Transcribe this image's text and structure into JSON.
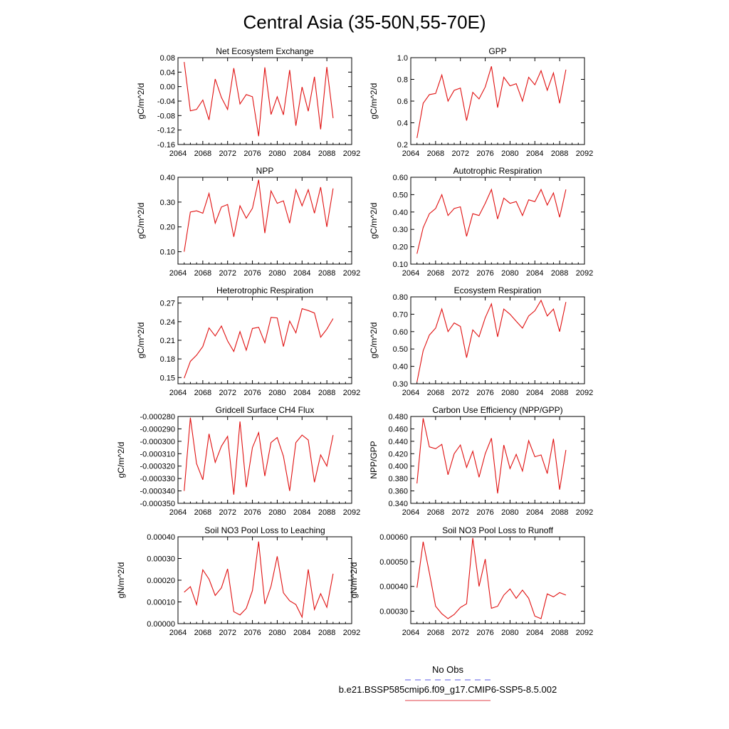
{
  "figure": {
    "title": "Central Asia (35-50N,55-70E)",
    "legend": {
      "position": "bottom-center",
      "entries": [
        {
          "label": "No Obs",
          "color": "#5a5ae6",
          "dash": "dashed"
        },
        {
          "label": "b.e21.BSSP585cmip6.f09_g17.CMIP6-SSP5-8.5.002",
          "color": "#e0404a",
          "dash": "solid"
        }
      ]
    },
    "line_color": "#e01010"
  },
  "chart_data": [
    {
      "type": "line",
      "title": "Net Ecosystem Exchange",
      "ylabel": "gC/m^2/d",
      "xlim": [
        2064,
        2092
      ],
      "xticks": [
        "2064",
        "2068",
        "2072",
        "2076",
        "2080",
        "2084",
        "2088",
        "2092"
      ],
      "ylim": [
        -0.16,
        0.08
      ],
      "yticks": [
        "0.08",
        "0.04",
        "0.00",
        "-0.04",
        "-0.08",
        "-0.12",
        "-0.16"
      ],
      "x": [
        2065,
        2066,
        2067,
        2068,
        2069,
        2070,
        2071,
        2072,
        2073,
        2074,
        2075,
        2076,
        2077,
        2078,
        2079,
        2080,
        2081,
        2082,
        2083,
        2084,
        2085,
        2086,
        2087,
        2088,
        2089
      ],
      "values": [
        0.068,
        -0.067,
        -0.063,
        -0.037,
        -0.092,
        0.021,
        -0.03,
        -0.063,
        0.051,
        -0.048,
        -0.022,
        -0.028,
        -0.137,
        0.053,
        -0.077,
        -0.028,
        -0.078,
        0.046,
        -0.108,
        -0.001,
        -0.068,
        0.027,
        -0.118,
        0.054,
        -0.087
      ]
    },
    {
      "type": "line",
      "title": "GPP",
      "ylabel": "gC/m^2/d",
      "xlim": [
        2064,
        2092
      ],
      "xticks": [
        "2064",
        "2068",
        "2072",
        "2076",
        "2080",
        "2084",
        "2088",
        "2092"
      ],
      "ylim": [
        0.2,
        1.0
      ],
      "yticks": [
        "1.0",
        "0.8",
        "0.6",
        "0.4",
        "0.2"
      ],
      "x": [
        2065,
        2066,
        2067,
        2068,
        2069,
        2070,
        2071,
        2072,
        2073,
        2074,
        2075,
        2076,
        2077,
        2078,
        2079,
        2080,
        2081,
        2082,
        2083,
        2084,
        2085,
        2086,
        2087,
        2088,
        2089
      ],
      "values": [
        0.26,
        0.58,
        0.66,
        0.67,
        0.84,
        0.6,
        0.7,
        0.72,
        0.42,
        0.68,
        0.62,
        0.73,
        0.92,
        0.54,
        0.82,
        0.74,
        0.76,
        0.6,
        0.82,
        0.75,
        0.88,
        0.7,
        0.86,
        0.58,
        0.89
      ]
    },
    {
      "type": "line",
      "title": "NPP",
      "ylabel": "gC/m^2/d",
      "xlim": [
        2064,
        2092
      ],
      "xticks": [
        "2064",
        "2068",
        "2072",
        "2076",
        "2080",
        "2084",
        "2088",
        "2092"
      ],
      "ylim": [
        0.05,
        0.4
      ],
      "yticks": [
        "0.40",
        "0.30",
        "0.20",
        "0.10"
      ],
      "x": [
        2065,
        2066,
        2067,
        2068,
        2069,
        2070,
        2071,
        2072,
        2073,
        2074,
        2075,
        2076,
        2077,
        2078,
        2079,
        2080,
        2081,
        2082,
        2083,
        2084,
        2085,
        2086,
        2087,
        2088,
        2089
      ],
      "values": [
        0.1,
        0.26,
        0.265,
        0.255,
        0.335,
        0.215,
        0.28,
        0.29,
        0.16,
        0.285,
        0.235,
        0.275,
        0.39,
        0.175,
        0.345,
        0.295,
        0.305,
        0.215,
        0.35,
        0.285,
        0.35,
        0.255,
        0.36,
        0.2,
        0.355
      ]
    },
    {
      "type": "line",
      "title": "Autotrophic Respiration",
      "ylabel": "gC/m^2/d",
      "xlim": [
        2064,
        2092
      ],
      "xticks": [
        "2064",
        "2068",
        "2072",
        "2076",
        "2080",
        "2084",
        "2088",
        "2092"
      ],
      "ylim": [
        0.1,
        0.6
      ],
      "yticks": [
        "0.60",
        "0.50",
        "0.40",
        "0.30",
        "0.20",
        "0.10"
      ],
      "x": [
        2065,
        2066,
        2067,
        2068,
        2069,
        2070,
        2071,
        2072,
        2073,
        2074,
        2075,
        2076,
        2077,
        2078,
        2079,
        2080,
        2081,
        2082,
        2083,
        2084,
        2085,
        2086,
        2087,
        2088,
        2089
      ],
      "values": [
        0.16,
        0.31,
        0.39,
        0.42,
        0.5,
        0.38,
        0.42,
        0.43,
        0.26,
        0.39,
        0.38,
        0.45,
        0.53,
        0.36,
        0.48,
        0.45,
        0.46,
        0.38,
        0.47,
        0.46,
        0.53,
        0.44,
        0.51,
        0.37,
        0.53
      ]
    },
    {
      "type": "line",
      "title": "Heterotrophic Respiration",
      "ylabel": "gC/m^2/d",
      "xlim": [
        2064,
        2092
      ],
      "xticks": [
        "2064",
        "2068",
        "2072",
        "2076",
        "2080",
        "2084",
        "2088",
        "2092"
      ],
      "ylim": [
        0.14,
        0.28
      ],
      "yticks": [
        "0.27",
        "0.24",
        "0.21",
        "0.18",
        "0.15"
      ],
      "x": [
        2065,
        2066,
        2067,
        2068,
        2069,
        2070,
        2071,
        2072,
        2073,
        2074,
        2075,
        2076,
        2077,
        2078,
        2079,
        2080,
        2081,
        2082,
        2083,
        2084,
        2085,
        2086,
        2087,
        2088,
        2089
      ],
      "values": [
        0.149,
        0.176,
        0.186,
        0.2,
        0.23,
        0.217,
        0.233,
        0.209,
        0.192,
        0.224,
        0.194,
        0.229,
        0.231,
        0.206,
        0.247,
        0.246,
        0.2,
        0.241,
        0.222,
        0.261,
        0.258,
        0.254,
        0.215,
        0.228,
        0.245
      ]
    },
    {
      "type": "line",
      "title": "Ecosystem Respiration",
      "ylabel": "gC/m^2/d",
      "xlim": [
        2064,
        2092
      ],
      "xticks": [
        "2064",
        "2068",
        "2072",
        "2076",
        "2080",
        "2084",
        "2088",
        "2092"
      ],
      "ylim": [
        0.3,
        0.8
      ],
      "yticks": [
        "0.80",
        "0.70",
        "0.60",
        "0.50",
        "0.40",
        "0.30"
      ],
      "x": [
        2065,
        2066,
        2067,
        2068,
        2069,
        2070,
        2071,
        2072,
        2073,
        2074,
        2075,
        2076,
        2077,
        2078,
        2079,
        2080,
        2081,
        2082,
        2083,
        2084,
        2085,
        2086,
        2087,
        2088,
        2089
      ],
      "values": [
        0.31,
        0.49,
        0.58,
        0.62,
        0.73,
        0.6,
        0.65,
        0.63,
        0.45,
        0.61,
        0.57,
        0.68,
        0.76,
        0.57,
        0.73,
        0.7,
        0.66,
        0.62,
        0.69,
        0.72,
        0.78,
        0.69,
        0.73,
        0.6,
        0.77
      ]
    },
    {
      "type": "line",
      "title": "Gridcell Surface CH4 Flux",
      "ylabel": "gC/m^2/d",
      "xlim": [
        2064,
        2092
      ],
      "xticks": [
        "2064",
        "2068",
        "2072",
        "2076",
        "2080",
        "2084",
        "2088",
        "2092"
      ],
      "ylim": [
        -0.00035,
        -0.00028
      ],
      "yticks": [
        "-0.000280",
        "-0.000290",
        "-0.000300",
        "-0.000310",
        "-0.000320",
        "-0.000330",
        "-0.000340",
        "-0.000350"
      ],
      "x": [
        2065,
        2066,
        2067,
        2068,
        2069,
        2070,
        2071,
        2072,
        2073,
        2074,
        2075,
        2076,
        2077,
        2078,
        2079,
        2080,
        2081,
        2082,
        2083,
        2084,
        2085,
        2086,
        2087,
        2088,
        2089
      ],
      "values": [
        -0.00034,
        -0.000281,
        -0.000318,
        -0.000331,
        -0.000294,
        -0.000317,
        -0.000304,
        -0.000296,
        -0.000343,
        -0.000284,
        -0.000337,
        -0.000305,
        -0.000293,
        -0.000328,
        -0.000301,
        -0.000297,
        -0.000312,
        -0.00034,
        -0.000301,
        -0.000295,
        -0.000299,
        -0.000333,
        -0.000311,
        -0.00032,
        -0.000295
      ]
    },
    {
      "type": "line",
      "title": "Carbon Use Efficiency (NPP/GPP)",
      "ylabel": "NPP/GPP",
      "xlim": [
        2064,
        2092
      ],
      "xticks": [
        "2064",
        "2068",
        "2072",
        "2076",
        "2080",
        "2084",
        "2088",
        "2092"
      ],
      "ylim": [
        0.34,
        0.48
      ],
      "yticks": [
        "0.480",
        "0.460",
        "0.440",
        "0.420",
        "0.400",
        "0.380",
        "0.360",
        "0.340"
      ],
      "x": [
        2065,
        2066,
        2067,
        2068,
        2069,
        2070,
        2071,
        2072,
        2073,
        2074,
        2075,
        2076,
        2077,
        2078,
        2079,
        2080,
        2081,
        2082,
        2083,
        2084,
        2085,
        2086,
        2087,
        2088,
        2089
      ],
      "values": [
        0.372,
        0.477,
        0.431,
        0.428,
        0.435,
        0.386,
        0.42,
        0.434,
        0.398,
        0.424,
        0.382,
        0.42,
        0.445,
        0.356,
        0.434,
        0.396,
        0.419,
        0.392,
        0.441,
        0.415,
        0.418,
        0.388,
        0.444,
        0.362,
        0.426
      ]
    },
    {
      "type": "line",
      "title": "Soil NO3 Pool Loss to Leaching",
      "ylabel": "gN/m^2/d",
      "xlim": [
        2064,
        2092
      ],
      "xticks": [
        "2064",
        "2068",
        "2072",
        "2076",
        "2080",
        "2084",
        "2088",
        "2092"
      ],
      "ylim": [
        0.0,
        0.0004
      ],
      "yticks": [
        "0.00040",
        "0.00030",
        "0.00020",
        "0.00010",
        "0.00000"
      ],
      "x": [
        2065,
        2066,
        2067,
        2068,
        2069,
        2070,
        2071,
        2072,
        2073,
        2074,
        2075,
        2076,
        2077,
        2078,
        2079,
        2080,
        2081,
        2082,
        2083,
        2084,
        2085,
        2086,
        2087,
        2088,
        2089
      ],
      "values": [
        0.000145,
        0.00017,
        8.8e-05,
        0.000248,
        0.000205,
        0.00013,
        0.000165,
        0.000252,
        5.5e-05,
        4e-05,
        7e-05,
        0.000152,
        0.000378,
        9e-05,
        0.000172,
        0.00031,
        0.000142,
        0.000105,
        8.8e-05,
        3e-05,
        0.00025,
        6.5e-05,
        0.000138,
        7.5e-05,
        0.00023
      ]
    },
    {
      "type": "line",
      "title": "Soil NO3 Pool Loss to Runoff",
      "ylabel": "gN/m^2/d",
      "xlim": [
        2064,
        2092
      ],
      "xticks": [
        "2064",
        "2068",
        "2072",
        "2076",
        "2080",
        "2084",
        "2088",
        "2092"
      ],
      "ylim": [
        0.00025,
        0.0006
      ],
      "yticks": [
        "0.00060",
        "0.00050",
        "0.00040",
        "0.00030"
      ],
      "x": [
        2065,
        2066,
        2067,
        2068,
        2069,
        2070,
        2071,
        2072,
        2073,
        2074,
        2075,
        2076,
        2077,
        2078,
        2079,
        2080,
        2081,
        2082,
        2083,
        2084,
        2085,
        2086,
        2087,
        2088,
        2089
      ],
      "values": [
        0.000395,
        0.00058,
        0.000455,
        0.00032,
        0.00029,
        0.00027,
        0.000287,
        0.000315,
        0.00033,
        0.000595,
        0.0004,
        0.00051,
        0.000312,
        0.00032,
        0.000365,
        0.00039,
        0.000352,
        0.000385,
        0.000352,
        0.00028,
        0.00027,
        0.00037,
        0.000358,
        0.000375,
        0.000365
      ]
    }
  ]
}
